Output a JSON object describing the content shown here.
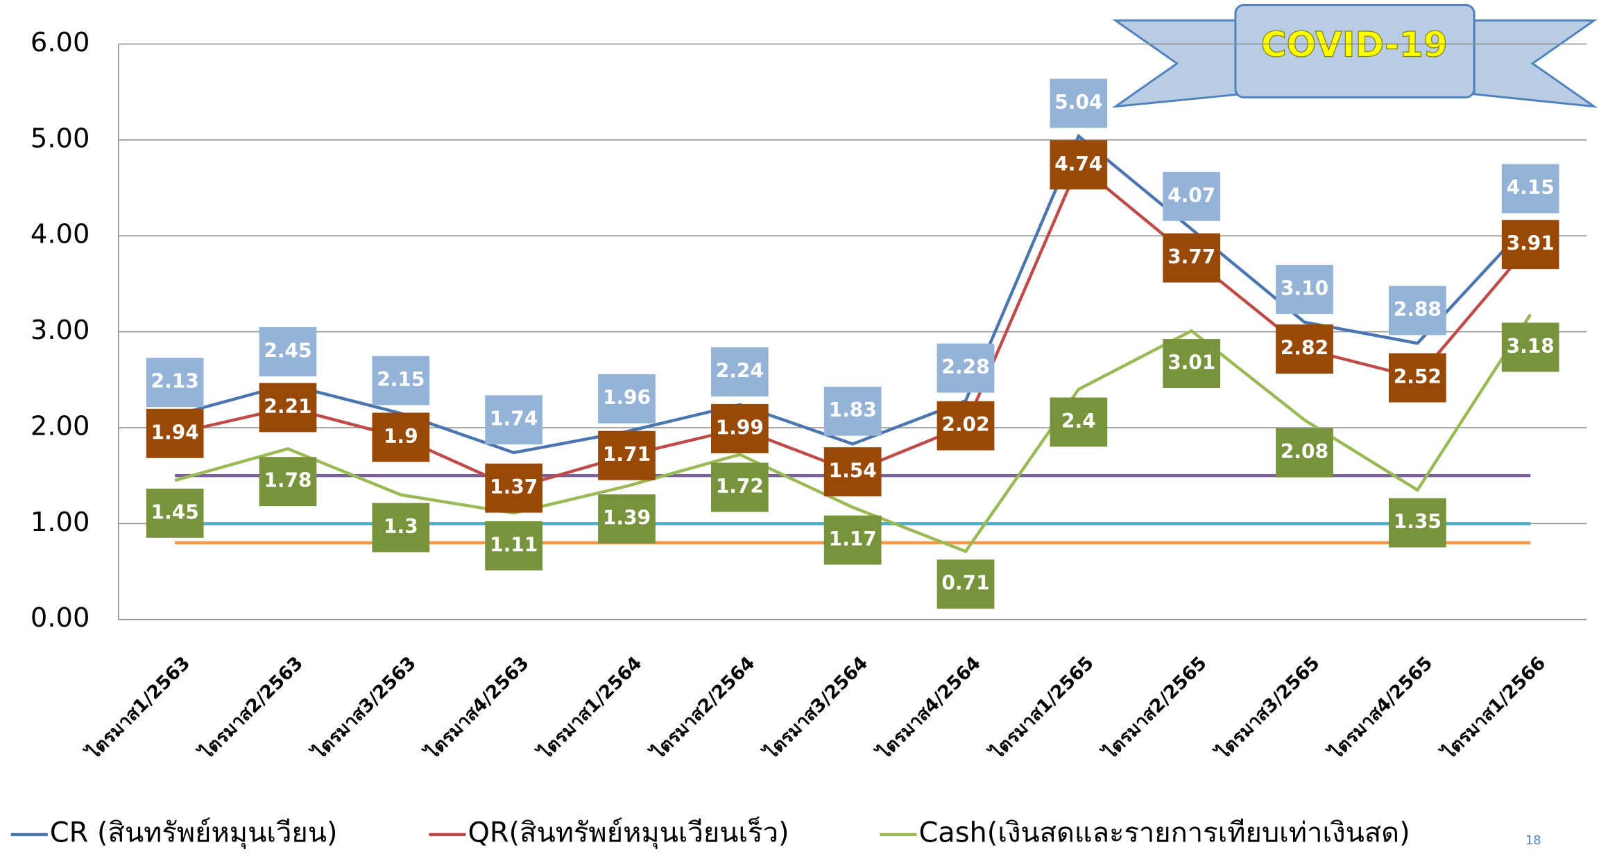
{
  "chart_data": {
    "type": "line",
    "annotation": "COVID-19",
    "page_number": "18",
    "categories": [
      "ไตรมาส1/2563",
      "ไตรมาส2/2563",
      "ไตรมาส3/2563",
      "ไตรมาส4/2563",
      "ไตรมาส1/2564",
      "ไตรมาส2/2564",
      "ไตรมาส3/2564",
      "ไตรมาส4/2564",
      "ไตรมาส1/2565",
      "ไตรมาส2/2565",
      "ไตรมาส3/2565",
      "ไตรมาส4/2565",
      "ไตรมาส1/2566"
    ],
    "series": [
      {
        "name": "CR (สินทรัพย์หมุนเวียน)",
        "color": "#4a76b0",
        "label_color": "#95b3d7",
        "values": [
          2.13,
          2.45,
          2.15,
          1.74,
          1.96,
          2.24,
          1.83,
          2.28,
          5.04,
          4.07,
          3.1,
          2.88,
          4.15
        ],
        "value_labels": [
          "2.13",
          "2.45",
          "2.15",
          "1.74",
          "1.96",
          "2.24",
          "1.83",
          "2.28",
          "5.04",
          "4.07",
          "3.10",
          "2.88",
          "4.15"
        ]
      },
      {
        "name": "QR(สินทรัพย์หมุนเวียนเร็ว)",
        "color": "#be4b48",
        "label_color": "#984807",
        "values": [
          1.94,
          2.21,
          1.9,
          1.37,
          1.71,
          1.99,
          1.54,
          2.02,
          4.74,
          3.77,
          2.82,
          2.52,
          3.91
        ]
      },
      {
        "name": "Cash(เงินสดและรายการเทียบเท่าเงินสด)",
        "color": "#98b954",
        "label_color": "#77933c",
        "values": [
          1.45,
          1.78,
          1.3,
          1.11,
          1.39,
          1.72,
          1.17,
          0.71,
          2.4,
          3.01,
          2.08,
          1.35,
          3.18
        ]
      }
    ],
    "reference_lines": [
      {
        "value": 1.5,
        "color": "#7d5fa0"
      },
      {
        "value": 1,
        "color": "#4bacc6"
      },
      {
        "value": 0.8,
        "color": "#f79646"
      }
    ],
    "ylim": [
      0,
      6
    ],
    "yticks": [
      {
        "value": 0,
        "label": "0.00"
      },
      {
        "value": 1,
        "label": "1.00"
      },
      {
        "value": 2,
        "label": "2.00"
      },
      {
        "value": 3,
        "label": "3.00"
      },
      {
        "value": 4,
        "label": "4.00"
      },
      {
        "value": 5,
        "label": "5.00"
      },
      {
        "value": 6,
        "label": "6.00"
      }
    ],
    "grid": true,
    "legend": "bottom"
  }
}
